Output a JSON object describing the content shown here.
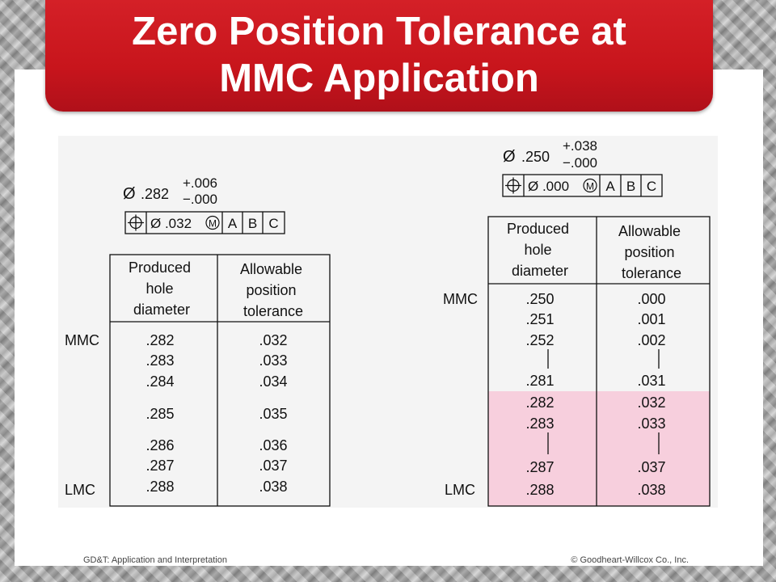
{
  "slide": {
    "title_line1": "Zero Position Tolerance at",
    "title_line2": "MMC Application",
    "footer_left": "GD&T: Application and Interpretation",
    "footer_right": "© Goodheart-Willcox Co., Inc."
  },
  "accent_colors": {
    "banner_red": "#c8151c",
    "highlight_pink": "#f7cfdd"
  },
  "left_figure": {
    "diameter_symbol": "Ø",
    "basic_size": ".282",
    "upper_tol": "+.006",
    "lower_tol": "−.000",
    "fcf": {
      "symbol": "position-icon",
      "tolerance": "Ø .032",
      "modifier": "M",
      "datums": [
        "A",
        "B",
        "C"
      ]
    },
    "table": {
      "headers": [
        [
          "Produced",
          "hole",
          "diameter"
        ],
        [
          "Allowable",
          "position",
          "tolerance"
        ]
      ],
      "mmc_label": "MMC",
      "lmc_label": "LMC",
      "rows": [
        {
          "hole": ".282",
          "tol": ".032"
        },
        {
          "hole": ".283",
          "tol": ".033"
        },
        {
          "hole": ".284",
          "tol": ".034"
        },
        {
          "hole": ".285",
          "tol": ".035"
        },
        {
          "hole": ".286",
          "tol": ".036"
        },
        {
          "hole": ".287",
          "tol": ".037"
        },
        {
          "hole": ".288",
          "tol": ".038"
        }
      ]
    }
  },
  "right_figure": {
    "diameter_symbol": "Ø",
    "basic_size": ".250",
    "upper_tol": "+.038",
    "lower_tol": "−.000",
    "fcf": {
      "symbol": "position-icon",
      "tolerance": "Ø .000",
      "modifier": "M",
      "datums": [
        "A",
        "B",
        "C"
      ]
    },
    "table": {
      "headers": [
        [
          "Produced",
          "hole",
          "diameter"
        ],
        [
          "Allowable",
          "position",
          "tolerance"
        ]
      ],
      "mmc_label": "MMC",
      "lmc_label": "LMC",
      "rows_top": [
        {
          "hole": ".250",
          "tol": ".000"
        },
        {
          "hole": ".251",
          "tol": ".001"
        },
        {
          "hole": ".252",
          "tol": ".002"
        },
        {
          "hole": ".281",
          "tol": ".031"
        }
      ],
      "rows_highlight": [
        {
          "hole": ".282",
          "tol": ".032"
        },
        {
          "hole": ".283",
          "tol": ".033"
        },
        {
          "hole": ".287",
          "tol": ".037"
        },
        {
          "hole": ".288",
          "tol": ".038"
        }
      ]
    }
  }
}
